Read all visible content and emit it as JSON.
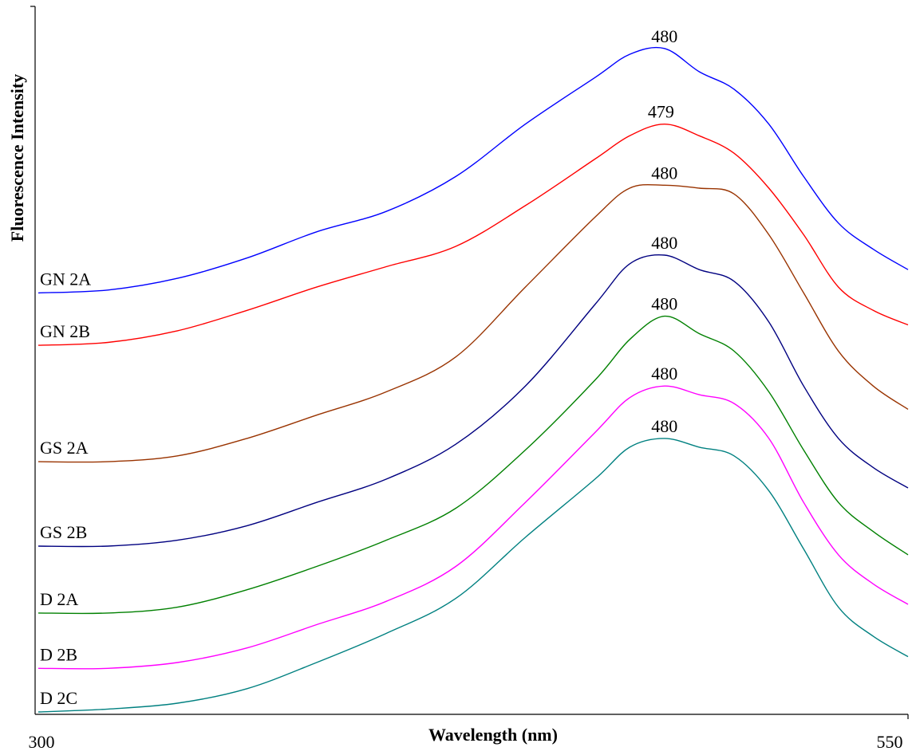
{
  "chart_data": {
    "type": "line",
    "title": "",
    "xlabel": "Wavelength (nm)",
    "ylabel": "Fluorescence Intensity",
    "xlim": [
      300,
      550
    ],
    "x_tick_labels": [
      "300",
      "550"
    ],
    "y_tick_labels": [],
    "grid": false,
    "legend": "none (series labeled at left end of each curve)",
    "units_note": "y values are relative fluorescence intensity (arbitrary units, stacked offsets)",
    "x": [
      300,
      320,
      340,
      360,
      380,
      400,
      420,
      440,
      460,
      470,
      480,
      490,
      500,
      510,
      520,
      530,
      540,
      550
    ],
    "series": [
      {
        "name": "GN 2A",
        "color": "#0000ff",
        "peak_label": "480",
        "peak_x": 480,
        "values": [
          7.2,
          7.25,
          7.45,
          7.8,
          8.25,
          8.6,
          9.2,
          10.1,
          10.9,
          11.3,
          11.4,
          11.0,
          10.7,
          10.1,
          9.2,
          8.4,
          7.95,
          7.6
        ]
      },
      {
        "name": "GN 2B",
        "color": "#ff0000",
        "peak_label": "479",
        "peak_x": 479,
        "values": [
          6.3,
          6.35,
          6.55,
          6.9,
          7.3,
          7.65,
          8.0,
          8.7,
          9.5,
          9.9,
          10.1,
          9.9,
          9.6,
          9.0,
          8.2,
          7.3,
          6.9,
          6.65
        ]
      },
      {
        "name": "GS 2A",
        "color": "#993300",
        "peak_label": "480",
        "peak_x": 480,
        "values": [
          4.3,
          4.3,
          4.4,
          4.7,
          5.1,
          5.5,
          6.1,
          7.3,
          8.5,
          9.0,
          9.05,
          9.0,
          8.9,
          8.2,
          7.2,
          6.2,
          5.6,
          5.2
        ]
      },
      {
        "name": "GS 2B",
        "color": "#000080",
        "peak_label": "480",
        "peak_x": 480,
        "values": [
          2.85,
          2.85,
          2.95,
          3.2,
          3.6,
          4.0,
          4.6,
          5.6,
          7.0,
          7.7,
          7.85,
          7.6,
          7.4,
          6.7,
          5.6,
          4.7,
          4.2,
          3.85
        ]
      },
      {
        "name": "D 2A",
        "color": "#008000",
        "peak_label": "480",
        "peak_x": 480,
        "values": [
          1.7,
          1.7,
          1.8,
          2.1,
          2.5,
          2.95,
          3.5,
          4.5,
          5.7,
          6.4,
          6.8,
          6.5,
          6.2,
          5.5,
          4.5,
          3.6,
          3.1,
          2.7
        ]
      },
      {
        "name": "D 2B",
        "color": "#ff00ff",
        "peak_label": "480",
        "peak_x": 480,
        "values": [
          0.75,
          0.75,
          0.85,
          1.1,
          1.5,
          1.9,
          2.5,
          3.6,
          4.8,
          5.4,
          5.6,
          5.45,
          5.3,
          4.7,
          3.6,
          2.7,
          2.2,
          1.85
        ]
      },
      {
        "name": "D 2C",
        "color": "#008080",
        "peak_label": "480",
        "peak_x": 480,
        "values": [
          0.0,
          0.05,
          0.15,
          0.4,
          0.85,
          1.35,
          1.95,
          3.0,
          4.0,
          4.55,
          4.7,
          4.55,
          4.4,
          3.8,
          2.8,
          1.8,
          1.3,
          0.95
        ]
      }
    ]
  }
}
